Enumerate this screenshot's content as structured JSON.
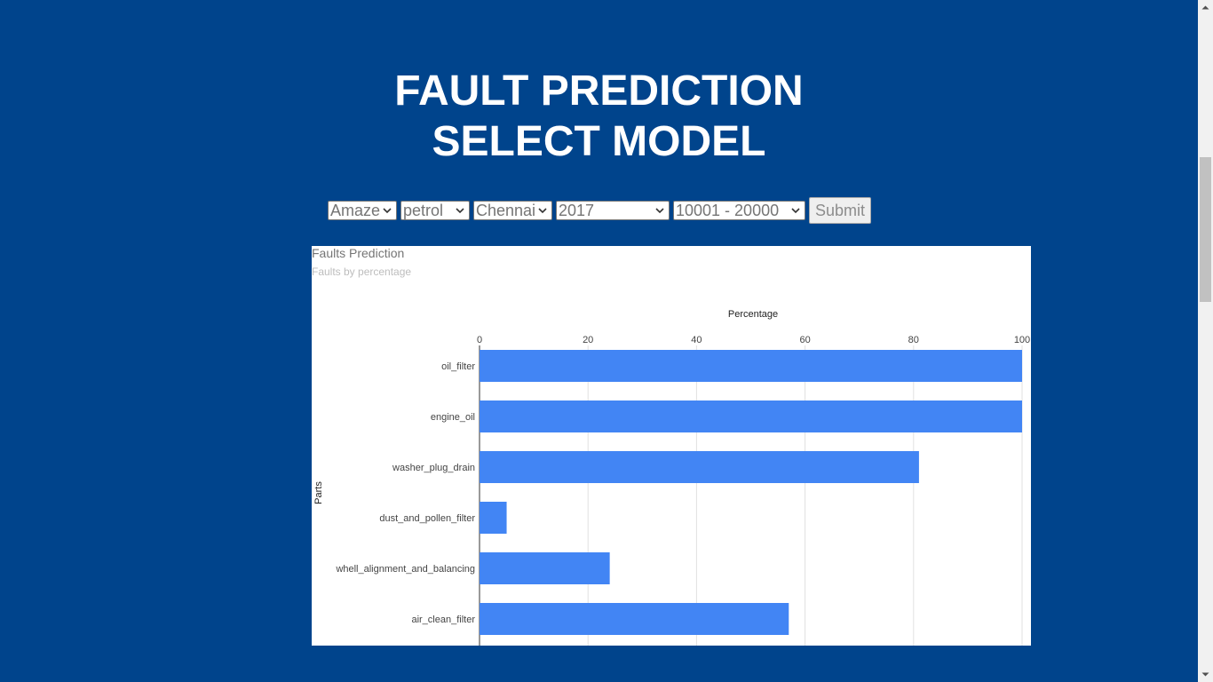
{
  "header": {
    "title_line1": "FAULT PREDICTION",
    "title_line2": "SELECT MODEL"
  },
  "form": {
    "model": "Amaze",
    "fuel": "petrol",
    "city": "Chennai",
    "year": "2017",
    "km_range": "10001 - 20000",
    "submit_label": "Submit"
  },
  "chart": {
    "title": "Faults Prediction",
    "subtitle": "Faults by percentage"
  },
  "chart_data": {
    "type": "bar",
    "orientation": "horizontal",
    "title": "Faults Prediction",
    "subtitle": "Faults by percentage",
    "xlabel": "Percentage",
    "ylabel": "Parts",
    "xlim": [
      0,
      100
    ],
    "ticks": [
      "0",
      "20",
      "40",
      "60",
      "80",
      "100"
    ],
    "categories": [
      "oil_filter",
      "engine_oil",
      "washer_plug_drain",
      "dust_and_pollen_filter",
      "whell_alignment_and_balancing",
      "air_clean_filter"
    ],
    "values": [
      100,
      100,
      81,
      5,
      24,
      57
    ],
    "bar_color": "#4285f4",
    "grid": true
  },
  "colors": {
    "background": "#00448c",
    "bar": "#4285f4"
  }
}
